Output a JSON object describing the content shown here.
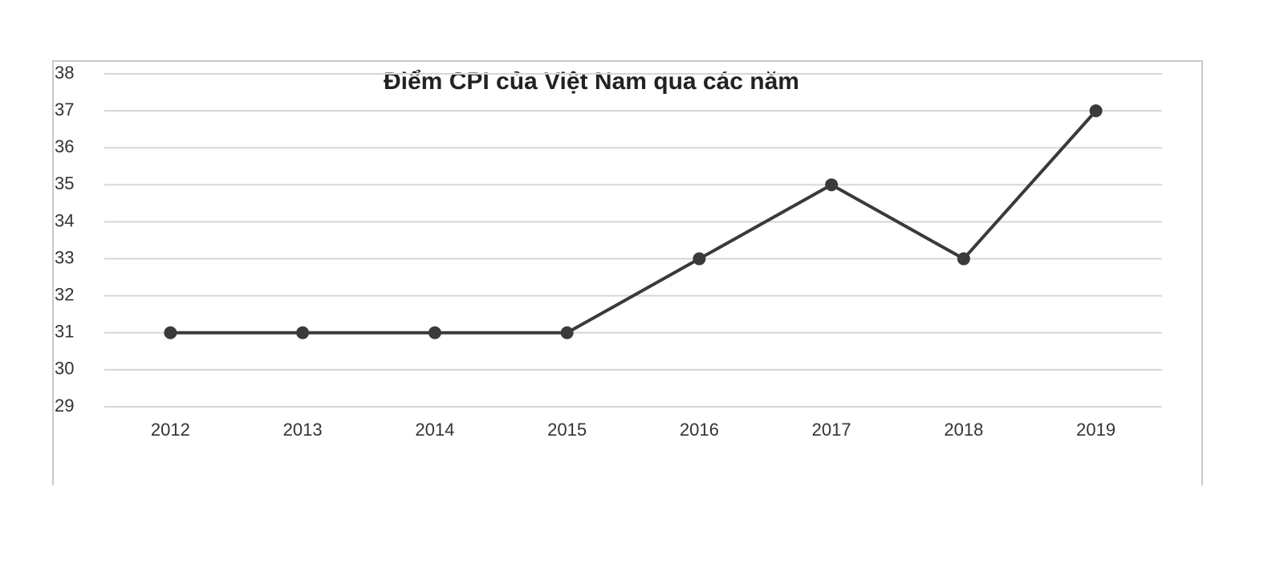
{
  "chart_data": {
    "type": "line",
    "title": "Điểm CPI của Việt Nam qua các năm",
    "categories": [
      "2012",
      "2013",
      "2014",
      "2015",
      "2016",
      "2017",
      "2018",
      "2019"
    ],
    "values": [
      31,
      31,
      31,
      31,
      33,
      35,
      33,
      37
    ],
    "color": "#3a3a3a",
    "ylim": [
      29,
      38
    ],
    "yticks": [
      29,
      30,
      31,
      32,
      33,
      34,
      35,
      36,
      37,
      38
    ],
    "grid": true
  }
}
